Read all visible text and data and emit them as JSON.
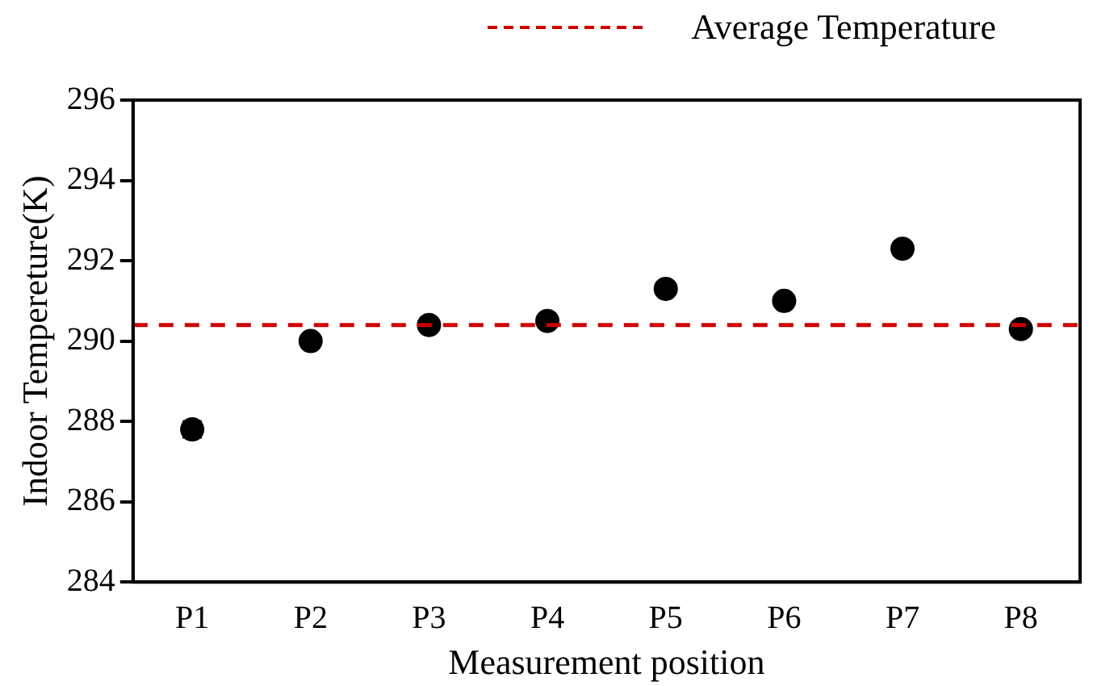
{
  "chart_data": {
    "type": "scatter",
    "xlabel": "Measurement position",
    "ylabel": "Indoor Tempereture(K)",
    "categories": [
      "P1",
      "P2",
      "P3",
      "P4",
      "P5",
      "P6",
      "P7",
      "P8"
    ],
    "series": [
      {
        "color": "#000000",
        "values": [
          287.8,
          290.0,
          290.4,
          290.5,
          291.3,
          291.0,
          292.3,
          290.3
        ],
        "errors": [
          0.2,
          null,
          null,
          null,
          null,
          null,
          null,
          null
        ]
      }
    ],
    "ylim": [
      284,
      296
    ],
    "yticks": [
      284,
      286,
      288,
      290,
      292,
      294,
      296
    ],
    "grid": false,
    "marker": "circle",
    "legend": "top right",
    "ref_lines": [
      {
        "axis": "y",
        "value": 290.4,
        "label": "Average Temperature",
        "color": "#cc0000",
        "line_style": "dashed"
      }
    ]
  }
}
